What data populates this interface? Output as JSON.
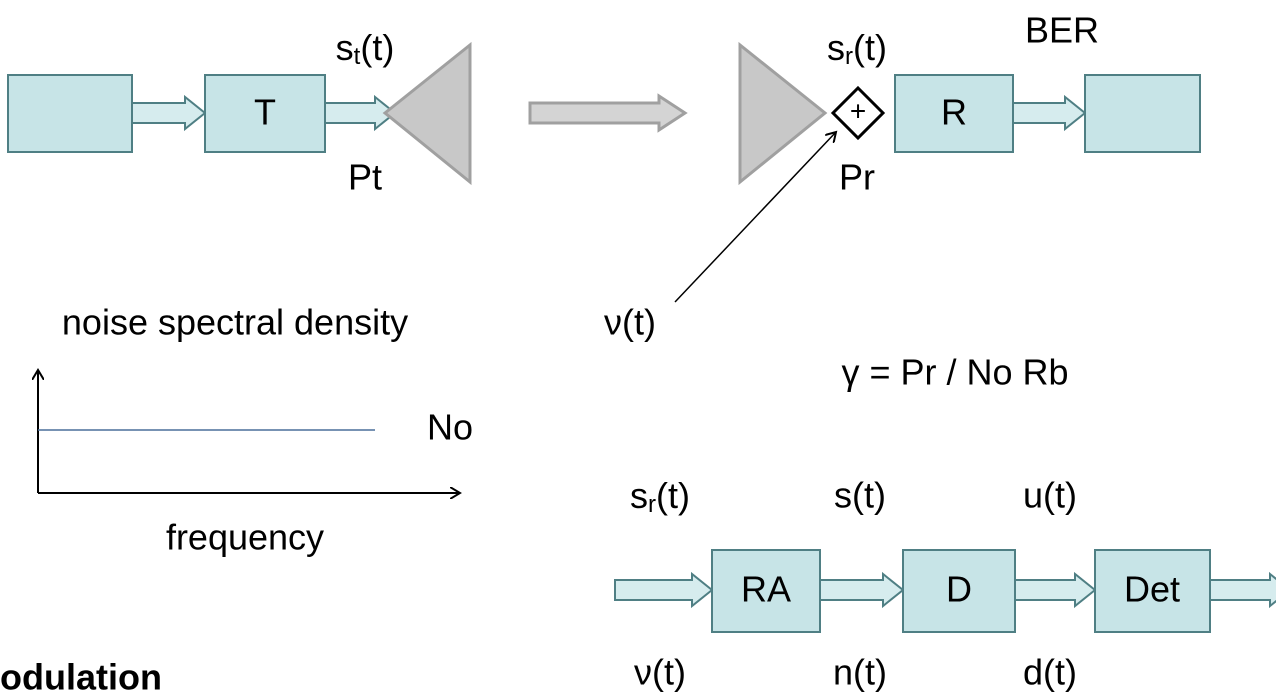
{
  "blocks": {
    "transmitter": "T",
    "receiver": "R",
    "ra": "RA",
    "d": "D",
    "det": "Det"
  },
  "labels": {
    "st": {
      "base": "s",
      "sub": "t",
      "tail": "(t)"
    },
    "pt": "Pt",
    "sr": {
      "base": "s",
      "sub": "r",
      "tail": "(t)"
    },
    "ber": "BER",
    "pr": "Pr",
    "plus": "+",
    "nu": "ν(t)",
    "noise": "noise spectral density",
    "snr": "γ = Pr / No Rb",
    "no": "No",
    "frequency": "frequency",
    "sr2": {
      "base": "s",
      "sub": "r",
      "tail": "(t)"
    },
    "s": "s(t)",
    "u": "u(t)",
    "nu2": "ν(t)",
    "n": "n(t)",
    "d": "d(t)",
    "footer": "odulation"
  }
}
